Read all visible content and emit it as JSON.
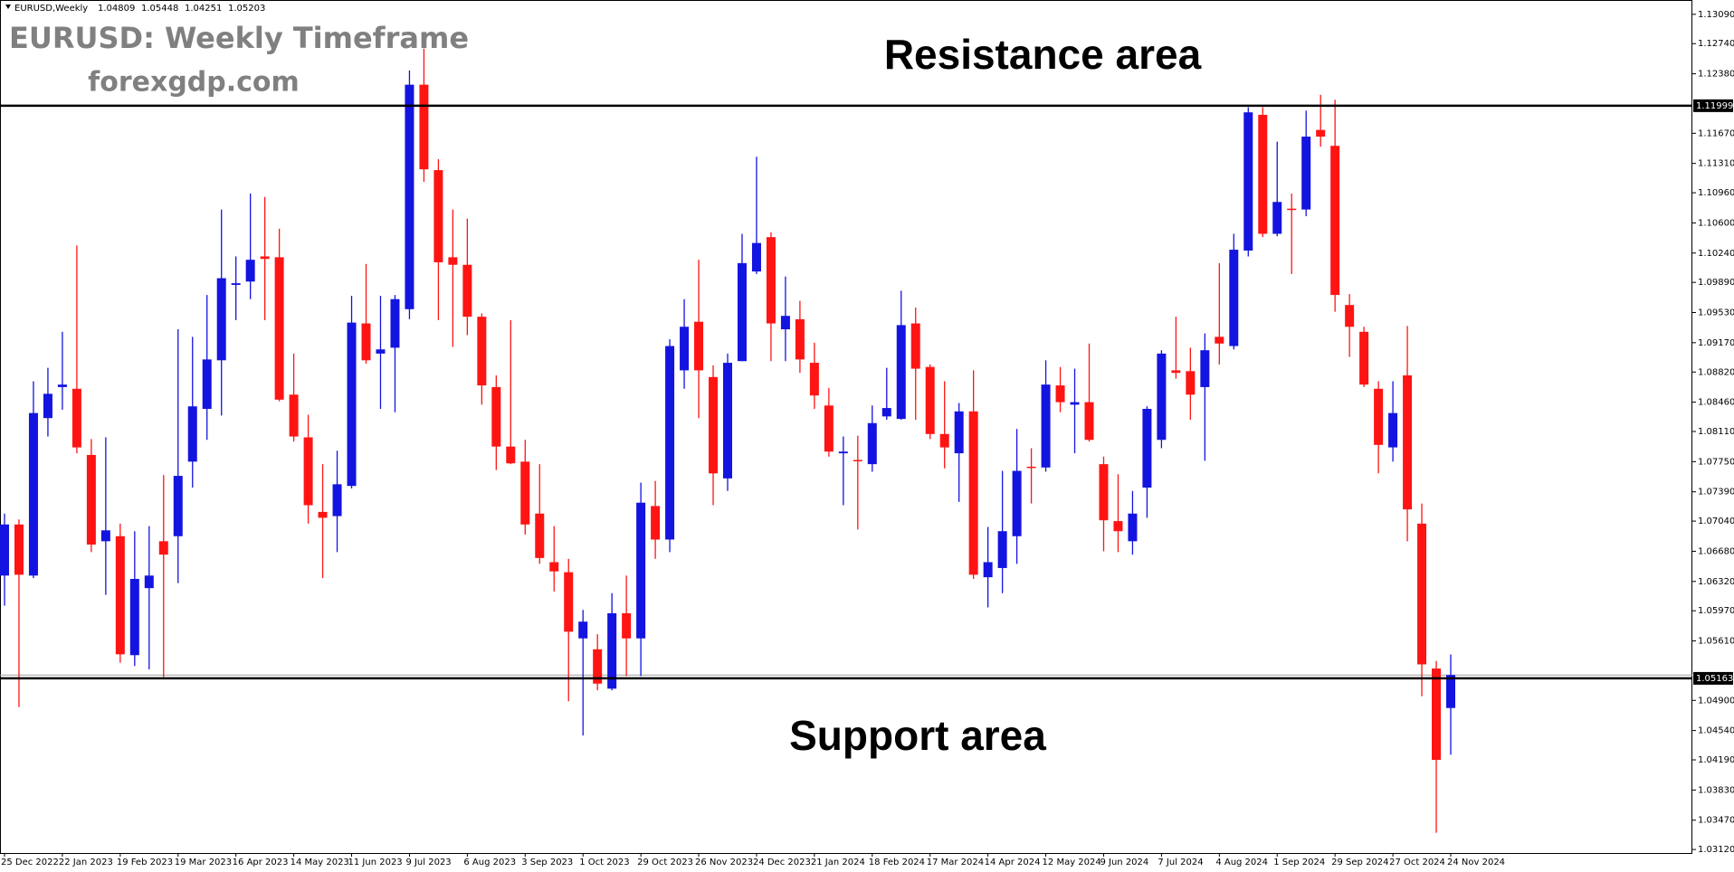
{
  "chart_data": {
    "type": "candlestick",
    "symbol": "EURUSD,Weekly",
    "title": "EURUSD: Weekly Timeframe",
    "subtitle": "forexgdp.com",
    "annotations": [
      "Resistance area",
      "Support area"
    ],
    "up_color": "#1414e0",
    "down_color": "#ff1414",
    "level_color": "#000000",
    "categories": [
      "25 Dec 2022",
      null,
      null,
      null,
      "22 Jan 2023",
      null,
      null,
      null,
      "19 Feb 2023",
      null,
      null,
      null,
      "19 Mar 2023",
      null,
      null,
      null,
      "16 Apr 2023",
      null,
      null,
      null,
      "14 May 2023",
      null,
      null,
      null,
      "11 Jun 2023",
      null,
      null,
      null,
      "9 Jul 2023",
      null,
      null,
      null,
      "6 Aug 2023",
      null,
      null,
      null,
      "3 Sep 2023",
      null,
      null,
      null,
      "1 Oct 2023",
      null,
      null,
      null,
      "29 Oct 2023",
      null,
      null,
      null,
      "26 Nov 2023",
      null,
      null,
      null,
      "24 Dec 2023",
      null,
      null,
      null,
      "21 Jan 2024",
      null,
      null,
      null,
      "18 Feb 2024",
      null,
      null,
      null,
      "17 Mar 2024",
      null,
      null,
      null,
      "14 Apr 2024",
      null,
      null,
      null,
      "12 May 2024",
      null,
      null,
      null,
      "9 Jun 2024",
      null,
      null,
      null,
      "7 Jul 2024",
      null,
      null,
      null,
      "4 Aug 2024",
      null,
      null,
      null,
      "1 Sep 2024",
      null,
      null,
      null,
      "29 Sep 2024",
      null,
      null,
      null,
      "27 Oct 2024",
      null,
      null,
      null,
      "24 Nov 2024"
    ],
    "open": [
      1.0639,
      1.07,
      1.0639,
      1.0827,
      1.0864,
      1.0862,
      1.0783,
      1.068,
      1.0686,
      1.0544,
      1.0624,
      1.068,
      1.0686,
      1.0775,
      1.0838,
      1.0896,
      1.0986,
      1.099,
      1.102,
      1.1019,
      1.0855,
      1.0804,
      1.0715,
      1.071,
      1.0746,
      1.094,
      1.0904,
      1.0911,
      1.0957,
      1.1225,
      1.1123,
      1.1019,
      1.101,
      1.0948,
      1.0864,
      1.0793,
      1.0775,
      1.0713,
      1.0655,
      1.0643,
      1.0564,
      1.0551,
      1.0504,
      1.0594,
      1.0564,
      1.0722,
      1.0682,
      1.0884,
      1.0942,
      1.0876,
      1.0755,
      1.0895,
      1.1002,
      1.1043,
      1.0933,
      1.0945,
      1.0893,
      1.0842,
      1.0785,
      1.0777,
      1.0772,
      1.0829,
      1.0826,
      1.094,
      1.0888,
      1.0808,
      1.0785,
      1.0835,
      1.0637,
      1.0648,
      1.0686,
      1.0769,
      1.0768,
      1.0866,
      1.0843,
      1.0846,
      1.0772,
      1.0704,
      1.068,
      1.0744,
      1.0801,
      1.0884,
      1.0883,
      1.0864,
      1.0924,
      1.0913,
      1.1027,
      1.1189,
      1.1047,
      1.1077,
      1.1076,
      1.1171,
      1.1152,
      1.0962,
      1.093,
      1.0862,
      1.0792,
      1.0878,
      1.0701,
      1.0528,
      1.04809
    ],
    "high": [
      1.0713,
      1.0706,
      1.0871,
      1.0887,
      1.093,
      1.1033,
      1.0802,
      1.0804,
      1.0701,
      1.0692,
      1.0698,
      1.0759,
      1.0933,
      1.0924,
      1.0974,
      1.1076,
      1.102,
      1.1095,
      1.1091,
      1.1053,
      1.0904,
      1.0831,
      1.0772,
      1.0788,
      1.0973,
      1.1011,
      1.0973,
      1.0974,
      1.1242,
      1.1268,
      1.1136,
      1.1076,
      1.1065,
      1.0952,
      1.0878,
      1.0944,
      1.0801,
      1.0772,
      1.0698,
      1.0659,
      1.0598,
      1.0569,
      1.0618,
      1.0639,
      1.075,
      1.0752,
      1.0921,
      1.0969,
      1.1016,
      1.089,
      1.0904,
      1.1047,
      1.1139,
      1.1049,
      1.0996,
      1.0967,
      1.0917,
      1.0863,
      1.0805,
      1.0806,
      1.0842,
      1.0887,
      1.0979,
      1.0959,
      1.0891,
      1.0871,
      1.0845,
      1.0884,
      1.0697,
      1.0764,
      1.0814,
      1.0791,
      1.0896,
      1.0888,
      1.0886,
      1.0916,
      1.0781,
      1.076,
      1.074,
      1.0841,
      1.0908,
      1.0948,
      1.0911,
      1.0928,
      1.1012,
      1.1047,
      1.1198,
      1.1198,
      1.1157,
      1.1095,
      1.1194,
      1.1213,
      1.1207,
      1.0975,
      1.0936,
      1.0871,
      1.0871,
      1.0937,
      1.0725,
      1.0537,
      1.05448
    ],
    "low": [
      1.0603,
      1.0482,
      1.0636,
      1.0805,
      1.0837,
      1.0785,
      1.0667,
      1.0616,
      1.0535,
      1.0531,
      1.0527,
      1.0518,
      1.063,
      1.0744,
      1.0801,
      1.083,
      1.0944,
      1.0969,
      1.0944,
      1.0847,
      1.0799,
      1.0701,
      1.0636,
      1.0667,
      1.0743,
      1.0892,
      1.0838,
      1.0834,
      1.0945,
      1.1109,
      1.0944,
      1.0912,
      1.0926,
      1.0843,
      1.0765,
      1.0772,
      1.0688,
      1.0653,
      1.062,
      1.0489,
      1.0448,
      1.0502,
      1.0502,
      1.0519,
      1.0519,
      1.0659,
      1.0667,
      1.0862,
      1.0827,
      1.0723,
      1.074,
      1.0895,
      1.0999,
      1.0895,
      1.0895,
      1.0881,
      1.0838,
      1.0781,
      1.0723,
      1.0694,
      1.0763,
      1.0825,
      1.0825,
      1.0825,
      1.0802,
      1.0767,
      1.0727,
      1.0635,
      1.0601,
      1.0618,
      1.0653,
      1.0725,
      1.0763,
      1.0834,
      1.0785,
      1.0799,
      1.0668,
      1.0667,
      1.0664,
      1.0708,
      1.0791,
      1.0874,
      1.0825,
      1.0776,
      1.0891,
      1.0909,
      1.102,
      1.1043,
      1.1044,
      1.0999,
      1.1068,
      1.1151,
      1.0954,
      1.09,
      1.0864,
      1.0761,
      1.0775,
      1.068,
      1.0495,
      1.0332,
      1.04251
    ],
    "close": [
      1.07,
      1.064,
      1.0833,
      1.0856,
      1.0867,
      1.0792,
      1.0676,
      1.0693,
      1.0545,
      1.0635,
      1.0639,
      1.0664,
      1.0758,
      1.0841,
      1.0897,
      1.0994,
      1.0988,
      1.1016,
      1.1017,
      1.0849,
      1.0805,
      1.0723,
      1.0708,
      1.0748,
      1.0941,
      1.0896,
      1.0909,
      1.0969,
      1.1225,
      1.1124,
      1.1013,
      1.101,
      1.0948,
      1.0866,
      1.0793,
      1.0773,
      1.07,
      1.066,
      1.0644,
      1.0572,
      1.0584,
      1.051,
      1.0594,
      1.0564,
      1.0726,
      1.0682,
      1.0913,
      1.0936,
      1.0884,
      1.0761,
      1.0893,
      1.1012,
      1.1036,
      1.094,
      1.0949,
      1.0897,
      1.0854,
      1.0787,
      1.0787,
      1.0776,
      1.0821,
      1.0839,
      1.0938,
      1.0886,
      1.0808,
      1.0792,
      1.0835,
      1.064,
      1.0655,
      1.0692,
      1.0764,
      1.0768,
      1.0867,
      1.0846,
      1.0846,
      1.0801,
      1.0705,
      1.0692,
      1.0713,
      1.0838,
      1.0904,
      1.0881,
      1.0855,
      1.0908,
      1.0916,
      1.1028,
      1.1192,
      1.1047,
      1.1085,
      1.1076,
      1.1163,
      1.1163,
      1.0974,
      1.0936,
      1.0867,
      1.0795,
      1.0833,
      1.0718,
      1.0533,
      1.0419,
      1.05203
    ],
    "levels": [
      {
        "value": 1.11999
      },
      {
        "value": 1.05163
      }
    ],
    "ylim": [
      1.03078,
      1.13261
    ],
    "yticks": [
      {
        "value": 1.1309,
        "label": "1.13090"
      },
      {
        "value": 1.1274,
        "label": "1.12740"
      },
      {
        "value": 1.1238,
        "label": "1.12380"
      },
      {
        "value": 1.1167,
        "label": "1.11670"
      },
      {
        "value": 1.1131,
        "label": "1.11310"
      },
      {
        "value": 1.1096,
        "label": "1.10960"
      },
      {
        "value": 1.106,
        "label": "1.10600"
      },
      {
        "value": 1.1024,
        "label": "1.10240"
      },
      {
        "value": 1.0989,
        "label": "1.09890"
      },
      {
        "value": 1.0953,
        "label": "1.09530"
      },
      {
        "value": 1.0917,
        "label": "1.09170"
      },
      {
        "value": 1.0882,
        "label": "1.08820"
      },
      {
        "value": 1.0846,
        "label": "1.08460"
      },
      {
        "value": 1.0811,
        "label": "1.08110"
      },
      {
        "value": 1.0775,
        "label": "1.07750"
      },
      {
        "value": 1.0739,
        "label": "1.07390"
      },
      {
        "value": 1.0704,
        "label": "1.07040"
      },
      {
        "value": 1.0668,
        "label": "1.06680"
      },
      {
        "value": 1.0632,
        "label": "1.06320"
      },
      {
        "value": 1.0597,
        "label": "1.05970"
      },
      {
        "value": 1.0561,
        "label": "1.05610"
      },
      {
        "value": 1.049,
        "label": "1.04900"
      },
      {
        "value": 1.0454,
        "label": "1.04540"
      },
      {
        "value": 1.0419,
        "label": "1.04190"
      },
      {
        "value": 1.0383,
        "label": "1.03830"
      },
      {
        "value": 1.0347,
        "label": "1.03470"
      },
      {
        "value": 1.0312,
        "label": "1.03120"
      }
    ],
    "grid": false
  }
}
